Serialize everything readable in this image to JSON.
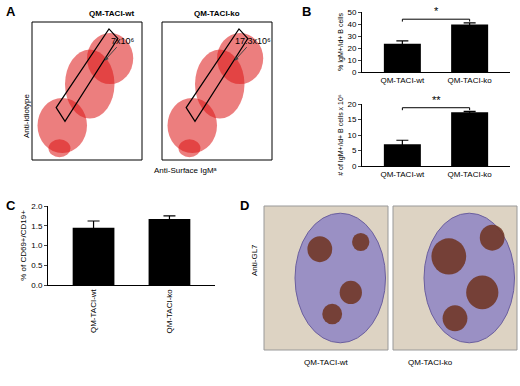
{
  "chart_data": [
    {
      "type": "bar",
      "panel": "B",
      "categories": [
        "QM-TACI-wt",
        "QM-TACI-ko"
      ],
      "values": [
        23.5,
        39.5
      ],
      "error": [
        2.5,
        1.5
      ],
      "ylabel": "% IgM+/id+ B cells",
      "ylim": [
        0,
        50
      ],
      "yticks": [
        0,
        10,
        20,
        30,
        40,
        50
      ],
      "color": "#000000",
      "annotations": [
        {
          "text": "*"
        }
      ]
    },
    {
      "type": "bar",
      "categories": [
        "QM-TACI-wt",
        "QM-TACI-ko"
      ],
      "values": [
        7,
        17.3
      ],
      "error": [
        1.3,
        0.3
      ],
      "ylabel": "# of IgM+/id+ B cells x 10⁶",
      "ylim": [
        0,
        20
      ],
      "yticks": [
        0,
        5,
        10,
        15,
        20
      ],
      "color": "#000000",
      "annotations": [
        {
          "text": "**"
        }
      ]
    },
    {
      "type": "bar",
      "panel": "C",
      "categories": [
        "QM-TACI-wt",
        "QM-TACI-ko"
      ],
      "values": [
        1.45,
        1.67
      ],
      "error": [
        0.17,
        0.08
      ],
      "ylabel": "% of CD69+/CD19+",
      "ylim": [
        0,
        2
      ],
      "yticks": [
        {
          "value": 0,
          "label": "0.0"
        },
        {
          "value": 0.5,
          "label": "0.5"
        },
        {
          "value": 1,
          "label": "1.0"
        },
        {
          "value": 1.5,
          "label": "1.5"
        },
        {
          "value": 2,
          "label": "2.0"
        }
      ],
      "color": "#000000"
    }
  ],
  "panels": [
    {
      "label": "A",
      "y_label": "Anti-idiotype",
      "x_label": "Anti-Surface IgMᵃ",
      "plots": [
        {
          "title": "QM-TACI-wt",
          "gate_count": "7x10⁶"
        },
        {
          "title": "QM-TACI-ko",
          "gate_count": "17.3x10⁶"
        }
      ]
    },
    {
      "label": "D",
      "y_label": "Anti-GL7",
      "images": [
        "QM-TACI-wt",
        "QM-TACI-ko"
      ]
    }
  ]
}
